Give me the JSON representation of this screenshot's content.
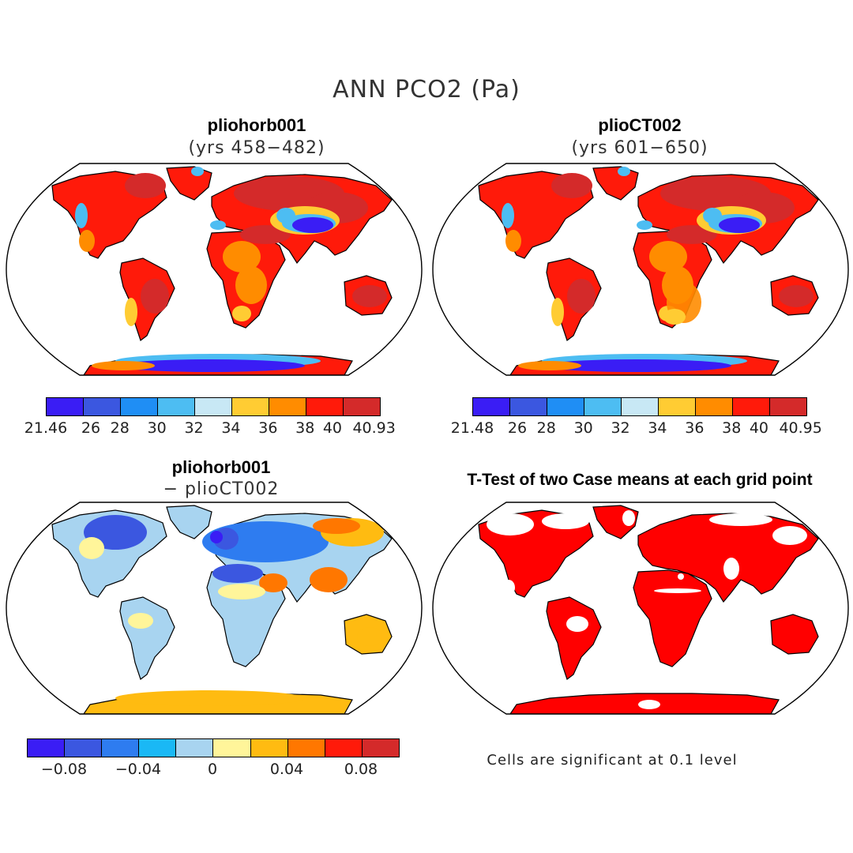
{
  "figure": {
    "title": "ANN PCO2 (Pa)",
    "panels": [
      {
        "title": "pliohorb001",
        "subtitle": "(yrs 458−482)"
      },
      {
        "title": "plioCT002",
        "subtitle": "(yrs 601−650)"
      },
      {
        "title": "pliohorb001",
        "subtitle": "− plioCT002"
      },
      {
        "title": "T-Test of two Case means at each grid point",
        "subtitle": ""
      }
    ],
    "note": "Cells are significant at 0.1 level"
  },
  "colorbars": {
    "panel1": {
      "colors": [
        "#3a1df5",
        "#3b57e0",
        "#1f8ef5",
        "#4dbdf2",
        "#c8e8f5",
        "#ffcc33",
        "#ff8c00",
        "#ff1a0a",
        "#d42a2a"
      ],
      "labels": [
        "21.46",
        "26",
        "28",
        "30",
        "32",
        "34",
        "36",
        "38",
        "40",
        "40.93"
      ]
    },
    "panel2": {
      "colors": [
        "#3a1df5",
        "#3b57e0",
        "#1f8ef5",
        "#4dbdf2",
        "#c8e8f5",
        "#ffcc33",
        "#ff8c00",
        "#ff1a0a",
        "#d42a2a"
      ],
      "labels": [
        "21.48",
        "26",
        "28",
        "30",
        "32",
        "34",
        "36",
        "38",
        "40",
        "40.95"
      ]
    },
    "diff": {
      "colors": [
        "#3a1df5",
        "#3b57e0",
        "#2e7cf0",
        "#1ab8f5",
        "#a8d4f0",
        "#fff59a",
        "#ffbb11",
        "#ff7700",
        "#ff1a0a",
        "#d42a2a"
      ],
      "labels": [
        "−0.08",
        "−0.04",
        "0",
        "0.04",
        "0.08"
      ]
    }
  },
  "palette": {
    "land_high": "#ff1a0a",
    "land_dark": "#d42a2a",
    "land_orange": "#ff8c00",
    "land_yellow": "#ffcc33",
    "land_lightblue": "#4dbdf2",
    "land_blue": "#3a1df5",
    "diff_blue": "#3b57e0",
    "diff_lightblue": "#a8d4f0",
    "diff_yellow": "#ffbb11",
    "sig_red": "#ff0000"
  }
}
